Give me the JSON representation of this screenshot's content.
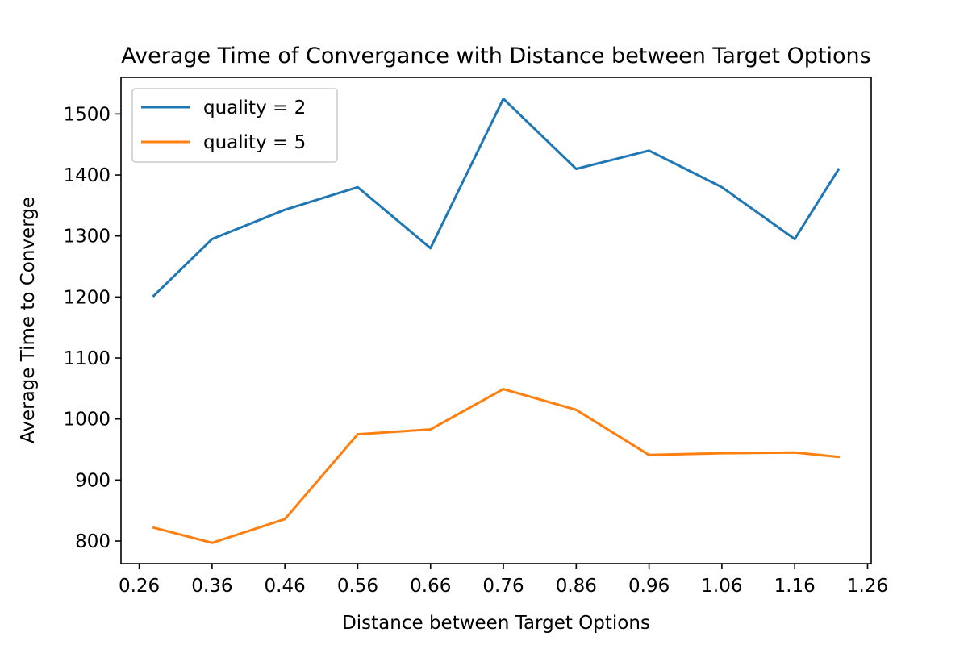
{
  "chart_data": {
    "type": "line",
    "title": "Average Time of Convergance with Distance between Target Options",
    "xlabel": "Distance between Target Options",
    "ylabel": "Average Time to Converge",
    "x": [
      0.28,
      0.36,
      0.46,
      0.56,
      0.66,
      0.76,
      0.86,
      0.96,
      1.06,
      1.16,
      1.22
    ],
    "xticks": [
      "0.26",
      "0.36",
      "0.46",
      "0.56",
      "0.66",
      "0.76",
      "0.86",
      "0.96",
      "1.06",
      "1.16",
      "1.26"
    ],
    "yticks": [
      "800",
      "900",
      "1000",
      "1100",
      "1200",
      "1300",
      "1400",
      "1500"
    ],
    "xlim": [
      0.235,
      1.265
    ],
    "ylim": [
      763,
      1560
    ],
    "grid": false,
    "legend_position": "top-left",
    "series": [
      {
        "name": "quality = 2",
        "color": "#1f77b4",
        "values": [
          1202,
          1295,
          1343,
          1380,
          1280,
          1525,
          1410,
          1440,
          1380,
          1295,
          1409
        ]
      },
      {
        "name": "quality = 5",
        "color": "#ff7f0e",
        "values": [
          822,
          797,
          836,
          975,
          983,
          1049,
          1015,
          941,
          944,
          945,
          938
        ]
      }
    ]
  }
}
